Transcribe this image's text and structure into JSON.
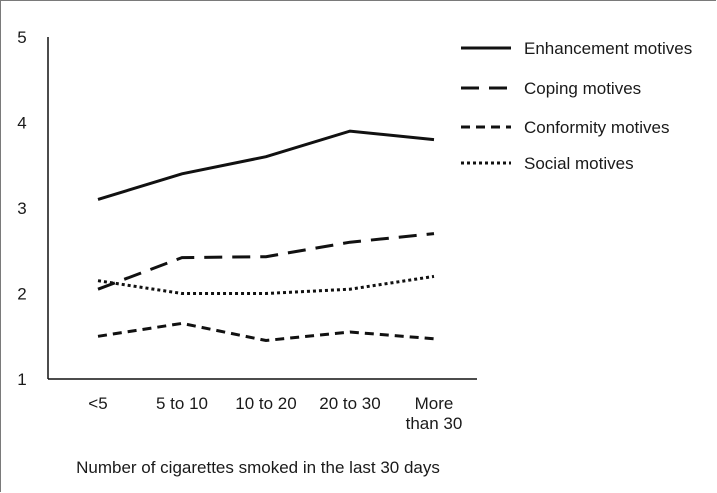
{
  "chart_data": {
    "type": "line",
    "title": "",
    "xlabel": "Number of cigarettes smoked in the last 30 days",
    "ylabel": "",
    "ylim": [
      1,
      5
    ],
    "yticks": [
      "1",
      "2",
      "3",
      "4",
      "5"
    ],
    "categories": [
      "<5",
      "5 to 10",
      "10 to 20",
      "20 to 30",
      "More than 30"
    ],
    "category_lines": [
      [
        "<5"
      ],
      [
        "5 to 10"
      ],
      [
        "10 to 20"
      ],
      [
        "20 to 30"
      ],
      [
        "More",
        "than 30"
      ]
    ],
    "grid": false,
    "legend_position": "top-right",
    "series": [
      {
        "name": "Enhancement motives",
        "style": "solid",
        "values": [
          3.1,
          3.4,
          3.6,
          3.9,
          3.8
        ]
      },
      {
        "name": "Coping motives",
        "style": "long-dash",
        "values": [
          2.05,
          2.42,
          2.43,
          2.6,
          2.7
        ]
      },
      {
        "name": "Conformity motives",
        "style": "short-dash",
        "values": [
          1.5,
          1.65,
          1.45,
          1.55,
          1.47
        ]
      },
      {
        "name": "Social motives",
        "style": "dotted",
        "values": [
          2.15,
          2.0,
          2.0,
          2.05,
          2.2
        ]
      }
    ],
    "line_color": "#111111"
  }
}
